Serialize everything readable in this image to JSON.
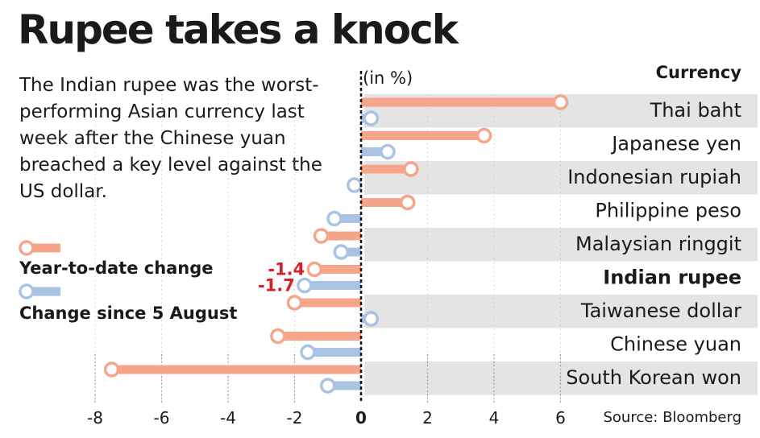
{
  "title": "Rupee takes a knock",
  "subtitle": "The Indian rupee was the worst-performing Asian currency last week after the Chinese yuan breached a key level against the US dollar.",
  "unit_label": "(in %)",
  "currency_header": "Currency",
  "source": "Source: Bloomberg",
  "colors": {
    "ytd": "#f4a58a",
    "since": "#a8c4e2",
    "callout": "#d61f26",
    "band": "#e4e4e4"
  },
  "chart_data": {
    "type": "bar",
    "orientation": "horizontal",
    "categories": [
      "Thai baht",
      "Japanese yen",
      "Indonesian rupiah",
      "Philippine peso",
      "Malaysian ringgit",
      "Indian rupee",
      "Taiwanese dollar",
      "Chinese yuan",
      "South Korean won"
    ],
    "highlight": "Indian rupee",
    "series": [
      {
        "name": "Year-to-date change",
        "values": [
          6.0,
          3.7,
          1.5,
          1.4,
          -1.2,
          -1.4,
          -2.0,
          -2.5,
          -7.5
        ]
      },
      {
        "name": "Change since 5 August",
        "values": [
          0.3,
          0.8,
          -0.2,
          -0.8,
          -0.6,
          -1.7,
          0.3,
          -1.6,
          -1.0
        ]
      }
    ],
    "xlim": [
      -8,
      7
    ],
    "xticks": [
      -8,
      -6,
      -4,
      -2,
      0,
      2,
      4,
      6
    ],
    "annotations": [
      "-1.4",
      "-1.7"
    ]
  }
}
